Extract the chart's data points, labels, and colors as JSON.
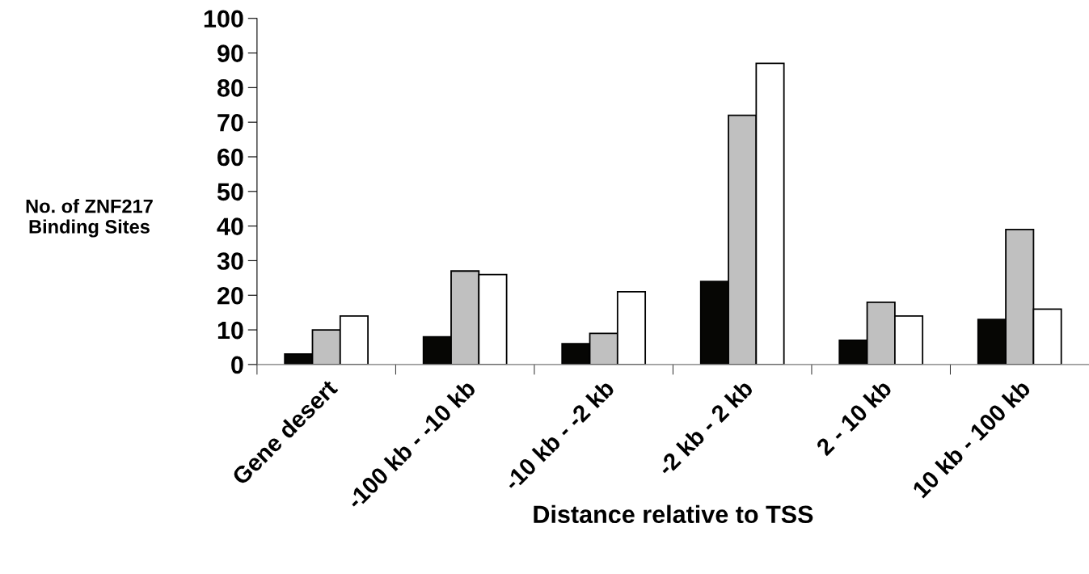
{
  "chart_data": {
    "type": "bar",
    "xlabel": "Distance relative to TSS",
    "ylabel": "No. of ZNF217\nBinding Sites",
    "categories": [
      "Gene desert",
      "-100 kb - -10 kb",
      "-10 kb - -2 kb",
      "-2 kb - 2 kb",
      "2 - 10 kb",
      "10 kb - 100 kb"
    ],
    "series": [
      {
        "color": "#060604",
        "values": [
          3,
          8,
          6,
          24,
          7,
          13
        ]
      },
      {
        "color": "#c0c0c0",
        "values": [
          10,
          27,
          9,
          72,
          18,
          39
        ]
      },
      {
        "color": "#ffffff",
        "values": [
          14,
          26,
          21,
          87,
          14,
          16
        ]
      }
    ],
    "ylim": [
      0,
      100
    ],
    "yticks": [
      0,
      10,
      20,
      30,
      40,
      50,
      60,
      70,
      80,
      90,
      100
    ],
    "grid": false,
    "legend": false
  }
}
